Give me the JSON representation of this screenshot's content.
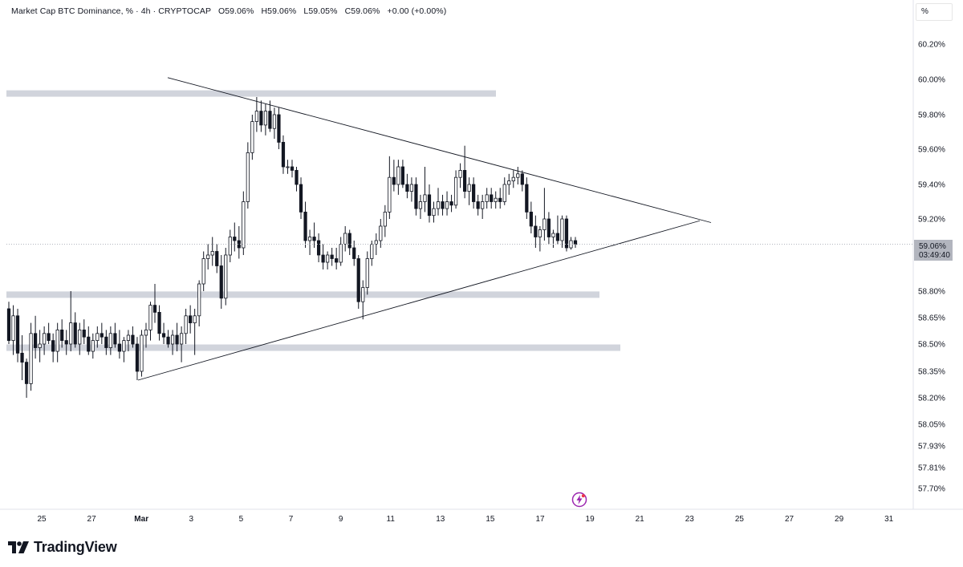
{
  "legend": {
    "title": "Market Cap BTC Dominance, % · 4h · CRYPTOCAP",
    "open": "O59.06%",
    "high": "H59.06%",
    "low": "L59.05%",
    "close": "C59.06%",
    "change": "+0.00 (+0.00%)"
  },
  "scale_unit_label": "%",
  "current_price": {
    "value": "59.06%",
    "countdown": "03:49:40"
  },
  "branding": {
    "logo_text": "TradingView"
  },
  "colors": {
    "candle": "#131722",
    "zone": "#d1d4dc",
    "trendline": "#131722",
    "alert_icon": "#9c27b0",
    "price_tag_bg": "#b2b5be"
  },
  "icons": {
    "alert": "lightning-alert-icon",
    "logo": "tradingview-logo-icon"
  },
  "chart_data": {
    "type": "candlestick",
    "title": "Market Cap BTC Dominance, % · 4h · CRYPTOCAP",
    "y_ticks": [
      "60.20%",
      "60.00%",
      "59.80%",
      "59.60%",
      "59.40%",
      "59.20%",
      "58.80%",
      "58.65%",
      "58.50%",
      "58.35%",
      "58.20%",
      "58.05%",
      "57.93%",
      "57.81%",
      "57.70%"
    ],
    "x_ticks": [
      "25",
      "27",
      "Mar",
      "3",
      "5",
      "7",
      "9",
      "11",
      "13",
      "15",
      "17",
      "19",
      "21",
      "23",
      "25",
      "27",
      "29",
      "31"
    ],
    "y_scale": "non-linear (log-type)",
    "last_price": 59.06,
    "support_resistance_zones": [
      {
        "price": 59.92,
        "label": "resistance"
      },
      {
        "price": 58.78,
        "label": "support"
      },
      {
        "price": 58.48,
        "label": "support"
      }
    ],
    "trendlines": [
      {
        "name": "upper",
        "from": [
          "Feb 28 12:00",
          60.01
        ],
        "to": [
          "Mar 23 20:00",
          59.18
        ]
      },
      {
        "name": "lower",
        "from": [
          "Feb 28",
          58.3
        ],
        "to": [
          "Mar 23 12:00",
          59.19
        ]
      }
    ],
    "candles_ohlc": [
      [
        58.7,
        58.74,
        58.5,
        58.52
      ],
      [
        58.52,
        58.72,
        58.44,
        58.66
      ],
      [
        58.66,
        58.7,
        58.4,
        58.45
      ],
      [
        58.45,
        58.55,
        58.3,
        58.4
      ],
      [
        58.4,
        58.42,
        58.2,
        58.28
      ],
      [
        58.28,
        58.62,
        58.24,
        58.56
      ],
      [
        58.56,
        58.66,
        58.42,
        58.48
      ],
      [
        58.48,
        58.58,
        58.4,
        58.5
      ],
      [
        58.5,
        58.6,
        58.44,
        58.56
      ],
      [
        58.56,
        58.62,
        58.5,
        58.52
      ],
      [
        58.52,
        58.56,
        58.4,
        58.46
      ],
      [
        58.46,
        58.62,
        58.4,
        58.58
      ],
      [
        58.58,
        58.64,
        58.48,
        58.52
      ],
      [
        58.52,
        58.58,
        58.44,
        58.5
      ],
      [
        58.5,
        58.8,
        58.46,
        58.62
      ],
      [
        58.62,
        58.68,
        58.48,
        58.5
      ],
      [
        58.5,
        58.62,
        58.44,
        58.58
      ],
      [
        58.58,
        58.64,
        58.5,
        58.54
      ],
      [
        58.54,
        58.6,
        58.44,
        58.46
      ],
      [
        58.46,
        58.56,
        58.42,
        58.52
      ],
      [
        58.52,
        58.6,
        58.48,
        58.56
      ],
      [
        58.56,
        58.62,
        58.5,
        58.54
      ],
      [
        58.54,
        58.58,
        58.44,
        58.48
      ],
      [
        58.48,
        58.6,
        58.44,
        58.56
      ],
      [
        58.56,
        58.62,
        58.48,
        58.5
      ],
      [
        58.5,
        58.58,
        58.42,
        58.46
      ],
      [
        58.46,
        58.54,
        58.4,
        58.52
      ],
      [
        58.52,
        58.58,
        58.46,
        58.55
      ],
      [
        58.55,
        58.6,
        58.48,
        58.5
      ],
      [
        58.5,
        58.54,
        58.3,
        58.35
      ],
      [
        58.35,
        58.58,
        58.32,
        58.55
      ],
      [
        58.55,
        58.62,
        58.48,
        58.58
      ],
      [
        58.58,
        58.74,
        58.52,
        58.72
      ],
      [
        58.72,
        58.84,
        58.62,
        58.68
      ],
      [
        58.68,
        58.72,
        58.52,
        58.56
      ],
      [
        58.56,
        58.62,
        58.5,
        58.54
      ],
      [
        58.54,
        58.58,
        58.48,
        58.5
      ],
      [
        58.5,
        58.58,
        58.44,
        58.55
      ],
      [
        58.55,
        58.62,
        58.46,
        58.5
      ],
      [
        58.5,
        58.6,
        58.4,
        58.56
      ],
      [
        58.56,
        58.7,
        58.5,
        58.66
      ],
      [
        58.66,
        58.72,
        58.56,
        58.62
      ],
      [
        58.62,
        58.7,
        58.44,
        58.66
      ],
      [
        58.66,
        58.86,
        58.6,
        58.84
      ],
      [
        58.84,
        59.02,
        58.8,
        58.98
      ],
      [
        58.98,
        59.06,
        58.92,
        59.0
      ],
      [
        59.0,
        59.1,
        58.94,
        59.02
      ],
      [
        59.02,
        59.06,
        58.9,
        58.94
      ],
      [
        58.94,
        59.0,
        58.7,
        58.76
      ],
      [
        58.76,
        59.04,
        58.72,
        59.0
      ],
      [
        59.0,
        59.14,
        58.96,
        59.1
      ],
      [
        59.1,
        59.18,
        59.02,
        59.08
      ],
      [
        59.08,
        59.16,
        58.98,
        59.04
      ],
      [
        59.04,
        59.36,
        59.0,
        59.3
      ],
      [
        59.3,
        59.64,
        59.26,
        59.58
      ],
      [
        59.58,
        59.8,
        59.54,
        59.76
      ],
      [
        59.76,
        59.9,
        59.7,
        59.82
      ],
      [
        59.82,
        59.88,
        59.7,
        59.74
      ],
      [
        59.74,
        59.86,
        59.68,
        59.82
      ],
      [
        59.82,
        59.88,
        59.7,
        59.72
      ],
      [
        59.72,
        59.84,
        59.66,
        59.8
      ],
      [
        59.8,
        59.84,
        59.6,
        59.64
      ],
      [
        59.64,
        59.68,
        59.46,
        59.5
      ],
      [
        59.5,
        59.54,
        59.46,
        59.5
      ],
      [
        59.5,
        59.54,
        59.44,
        59.48
      ],
      [
        59.48,
        59.5,
        59.36,
        59.4
      ],
      [
        59.4,
        59.44,
        59.2,
        59.24
      ],
      [
        59.24,
        59.3,
        59.04,
        59.08
      ],
      [
        59.08,
        59.14,
        59.0,
        59.1
      ],
      [
        59.1,
        59.18,
        59.04,
        59.08
      ],
      [
        59.08,
        59.12,
        58.96,
        59.0
      ],
      [
        59.0,
        59.06,
        58.92,
        58.96
      ],
      [
        58.96,
        59.02,
        58.92,
        59.0
      ],
      [
        59.0,
        59.04,
        58.94,
        58.98
      ],
      [
        58.98,
        59.04,
        58.92,
        58.96
      ],
      [
        58.96,
        59.1,
        58.94,
        59.06
      ],
      [
        59.06,
        59.16,
        59.02,
        59.12
      ],
      [
        59.12,
        59.14,
        59.0,
        59.04
      ],
      [
        59.04,
        59.08,
        58.94,
        58.98
      ],
      [
        58.98,
        59.0,
        58.7,
        58.74
      ],
      [
        58.74,
        58.86,
        58.64,
        58.82
      ],
      [
        58.82,
        59.02,
        58.78,
        58.98
      ],
      [
        58.98,
        59.08,
        58.94,
        59.06
      ],
      [
        59.06,
        59.12,
        59.0,
        59.08
      ],
      [
        59.08,
        59.2,
        59.04,
        59.16
      ],
      [
        59.16,
        59.28,
        59.1,
        59.24
      ],
      [
        59.24,
        59.56,
        59.2,
        59.44
      ],
      [
        59.44,
        59.54,
        59.36,
        59.4
      ],
      [
        59.4,
        59.54,
        59.34,
        59.5
      ],
      [
        59.5,
        59.54,
        59.38,
        59.4
      ],
      [
        59.4,
        59.46,
        59.32,
        59.36
      ],
      [
        59.36,
        59.44,
        59.3,
        59.4
      ],
      [
        59.4,
        59.44,
        59.22,
        59.26
      ],
      [
        59.26,
        59.34,
        59.2,
        59.3
      ],
      [
        59.3,
        59.5,
        59.24,
        59.34
      ],
      [
        59.34,
        59.4,
        59.18,
        59.22
      ],
      [
        59.22,
        59.3,
        59.18,
        59.26
      ],
      [
        59.26,
        59.38,
        59.22,
        59.3
      ],
      [
        59.3,
        59.34,
        59.22,
        59.26
      ],
      [
        59.26,
        59.36,
        59.22,
        59.3
      ],
      [
        59.3,
        59.34,
        59.24,
        59.28
      ],
      [
        59.28,
        59.48,
        59.26,
        59.44
      ],
      [
        59.44,
        59.52,
        59.38,
        59.48
      ],
      [
        59.48,
        59.62,
        59.32,
        59.36
      ],
      [
        59.36,
        59.44,
        59.28,
        59.4
      ],
      [
        59.4,
        59.44,
        59.26,
        59.3
      ],
      [
        59.3,
        59.34,
        59.22,
        59.26
      ],
      [
        59.26,
        59.34,
        59.2,
        59.3
      ],
      [
        59.3,
        59.38,
        59.26,
        59.34
      ],
      [
        59.34,
        59.38,
        59.26,
        59.3
      ],
      [
        59.3,
        59.36,
        59.26,
        59.32
      ],
      [
        59.32,
        59.38,
        59.26,
        59.3
      ],
      [
        59.3,
        59.44,
        59.28,
        59.4
      ],
      [
        59.4,
        59.46,
        59.34,
        59.42
      ],
      [
        59.42,
        59.48,
        59.38,
        59.44
      ],
      [
        59.44,
        59.5,
        59.4,
        59.46
      ],
      [
        59.46,
        59.48,
        59.36,
        59.4
      ],
      [
        59.4,
        59.44,
        59.2,
        59.24
      ],
      [
        59.24,
        59.3,
        59.12,
        59.16
      ],
      [
        59.16,
        59.22,
        59.04,
        59.1
      ],
      [
        59.1,
        59.16,
        59.02,
        59.14
      ],
      [
        59.14,
        59.38,
        59.08,
        59.2
      ],
      [
        59.2,
        59.24,
        59.06,
        59.1
      ],
      [
        59.1,
        59.14,
        59.04,
        59.12
      ],
      [
        59.12,
        59.22,
        59.06,
        59.08
      ],
      [
        59.08,
        59.22,
        59.04,
        59.2
      ],
      [
        59.2,
        59.22,
        59.02,
        59.04
      ],
      [
        59.04,
        59.1,
        59.03,
        59.08
      ],
      [
        59.08,
        59.1,
        59.04,
        59.06
      ]
    ]
  }
}
